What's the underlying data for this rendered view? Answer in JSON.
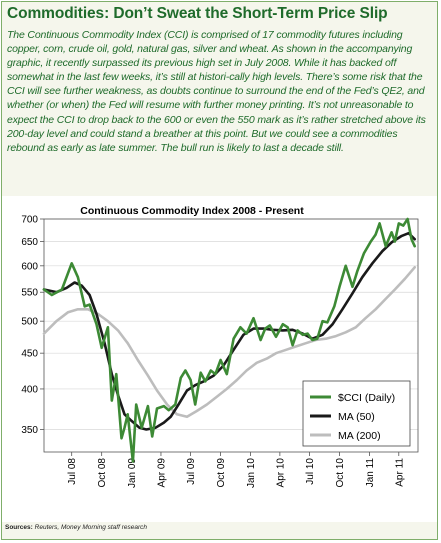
{
  "headline": "Commodities: Don’t Sweat the Short-Term Price Slip",
  "body_text": "The Continuous Commodity Index (CCI) is comprised of 17 commodity futures including copper, corn, crude oil, gold, natural gas, silver and wheat. As shown in the accompanying graphic, it recently surpassed its previous high set in July 2008. While it has backed off somewhat in the last few weeks, it’s still at histori-cally high levels. There’s some risk that the CCI will see further weakness, as doubts continue to surround the end of the Fed’s QE2, and whether (or when) the Fed will resume with further money printing. It’s not unreasonable to expect the CCI to drop back to the 600 or even the 550 mark as it’s rather stretched above its 200-day level and could stand a breather at this point. But we could see a commodities rebound as early as late summer. The bull run is likely to last a decade still.",
  "source": {
    "label": "Sources:",
    "text": "Reuters, Money Morning staff research"
  },
  "colors": {
    "headline": "#1f6b2b",
    "frame_border": "#7fae6a",
    "background": "#f5f6ec",
    "cci": "#3d8a35",
    "ma50": "#1a1a1a",
    "ma200": "#bdbdbd"
  },
  "chart_data": {
    "type": "line",
    "title": "Continuous Commodity Index 2008 - Present",
    "xlabel": "",
    "ylabel": "",
    "y_scale": "log",
    "ylim": [
      325,
      700
    ],
    "yticks": [
      350,
      400,
      450,
      500,
      550,
      600,
      650,
      700
    ],
    "xlim": [
      "2008-04-07",
      "2011-05-30"
    ],
    "x_ticks": [
      {
        "date": "2008-07-01",
        "label": "Jul 08"
      },
      {
        "date": "2008-10-01",
        "label": "Oct 08"
      },
      {
        "date": "2009-01-01",
        "label": "Jan 09"
      },
      {
        "date": "2009-04-01",
        "label": "Apr 09"
      },
      {
        "date": "2009-07-01",
        "label": "Jul 09"
      },
      {
        "date": "2009-10-01",
        "label": "Oct 09"
      },
      {
        "date": "2010-01-01",
        "label": "Jan 10"
      },
      {
        "date": "2010-04-01",
        "label": "Apr 10"
      },
      {
        "date": "2010-07-01",
        "label": "Jul 10"
      },
      {
        "date": "2010-10-01",
        "label": "Oct 10"
      },
      {
        "date": "2011-01-01",
        "label": "Jan 11"
      },
      {
        "date": "2011-04-01",
        "label": "Apr 11"
      }
    ],
    "grid": "horizontal",
    "legend_position": "bottom-right",
    "series": [
      {
        "name": "$CCI (Daily)",
        "color": "#3d8a35",
        "x": [
          "2008-04-07",
          "2008-05-01",
          "2008-06-01",
          "2008-07-01",
          "2008-07-20",
          "2008-08-10",
          "2008-08-25",
          "2008-09-15",
          "2008-10-01",
          "2008-10-20",
          "2008-11-01",
          "2008-11-15",
          "2008-12-01",
          "2008-12-10",
          "2008-12-20",
          "2009-01-05",
          "2009-01-15",
          "2009-02-01",
          "2009-02-20",
          "2009-03-05",
          "2009-03-20",
          "2009-04-10",
          "2009-04-25",
          "2009-05-15",
          "2009-06-01",
          "2009-06-15",
          "2009-07-01",
          "2009-07-15",
          "2009-08-01",
          "2009-08-15",
          "2009-09-01",
          "2009-09-15",
          "2009-10-01",
          "2009-10-20",
          "2009-11-10",
          "2009-12-01",
          "2009-12-20",
          "2010-01-10",
          "2010-02-01",
          "2010-02-15",
          "2010-03-01",
          "2010-03-20",
          "2010-04-10",
          "2010-04-25",
          "2010-05-10",
          "2010-05-25",
          "2010-06-10",
          "2010-06-25",
          "2010-07-10",
          "2010-07-25",
          "2010-08-10",
          "2010-08-25",
          "2010-09-15",
          "2010-10-01",
          "2010-10-20",
          "2010-11-10",
          "2010-11-25",
          "2010-12-15",
          "2011-01-05",
          "2011-01-20",
          "2011-02-01",
          "2011-02-20",
          "2011-03-10",
          "2011-03-20",
          "2011-04-01",
          "2011-04-15",
          "2011-04-28",
          "2011-05-10",
          "2011-05-20"
        ],
        "values": [
          555,
          545,
          555,
          605,
          578,
          525,
          528,
          495,
          458,
          490,
          385,
          420,
          340,
          352,
          368,
          315,
          380,
          352,
          378,
          342,
          375,
          378,
          373,
          380,
          415,
          425,
          412,
          380,
          422,
          410,
          425,
          420,
          440,
          420,
          472,
          490,
          480,
          505,
          470,
          488,
          493,
          475,
          495,
          490,
          462,
          485,
          478,
          480,
          470,
          472,
          500,
          498,
          525,
          560,
          600,
          560,
          590,
          625,
          650,
          665,
          690,
          640,
          670,
          650,
          690,
          685,
          700,
          655,
          640
        ]
      },
      {
        "name": "MA (50)",
        "color": "#1a1a1a",
        "x": [
          "2008-04-07",
          "2008-05-15",
          "2008-06-15",
          "2008-07-10",
          "2008-08-01",
          "2008-08-25",
          "2008-09-15",
          "2008-10-10",
          "2008-11-01",
          "2008-11-20",
          "2008-12-10",
          "2009-01-01",
          "2009-01-25",
          "2009-02-15",
          "2009-03-15",
          "2009-04-10",
          "2009-05-01",
          "2009-05-25",
          "2009-06-20",
          "2009-07-15",
          "2009-08-10",
          "2009-09-10",
          "2009-10-10",
          "2009-11-10",
          "2009-12-10",
          "2010-01-10",
          "2010-02-10",
          "2010-03-10",
          "2010-04-10",
          "2010-05-10",
          "2010-06-10",
          "2010-07-10",
          "2010-08-10",
          "2010-09-10",
          "2010-10-10",
          "2010-11-10",
          "2010-12-10",
          "2011-01-10",
          "2011-02-10",
          "2011-03-10",
          "2011-04-10",
          "2011-05-01",
          "2011-05-20"
        ],
        "values": [
          555,
          550,
          558,
          568,
          562,
          545,
          512,
          465,
          420,
          392,
          368,
          360,
          352,
          350,
          352,
          358,
          365,
          380,
          398,
          405,
          410,
          418,
          432,
          455,
          478,
          488,
          488,
          486,
          485,
          486,
          480,
          472,
          478,
          495,
          520,
          548,
          578,
          605,
          630,
          648,
          662,
          668,
          655
        ]
      },
      {
        "name": "MA (200)",
        "color": "#bdbdbd",
        "x": [
          "2008-04-07",
          "2008-05-15",
          "2008-06-20",
          "2008-07-20",
          "2008-08-20",
          "2008-09-20",
          "2008-10-20",
          "2008-11-20",
          "2008-12-20",
          "2009-01-20",
          "2009-02-20",
          "2009-03-20",
          "2009-04-20",
          "2009-05-20",
          "2009-06-20",
          "2009-07-20",
          "2009-08-20",
          "2009-09-20",
          "2009-10-20",
          "2009-11-20",
          "2009-12-20",
          "2010-01-20",
          "2010-02-20",
          "2010-03-20",
          "2010-04-20",
          "2010-05-20",
          "2010-06-20",
          "2010-07-20",
          "2010-08-20",
          "2010-09-20",
          "2010-10-20",
          "2010-11-20",
          "2010-12-20",
          "2011-01-20",
          "2011-02-20",
          "2011-03-20",
          "2011-04-20",
          "2011-05-20"
        ],
        "values": [
          480,
          500,
          515,
          520,
          520,
          512,
          500,
          485,
          465,
          440,
          418,
          398,
          380,
          368,
          365,
          372,
          380,
          390,
          400,
          412,
          425,
          436,
          442,
          450,
          455,
          460,
          465,
          470,
          472,
          476,
          482,
          490,
          505,
          520,
          538,
          555,
          575,
          597
        ]
      }
    ]
  }
}
